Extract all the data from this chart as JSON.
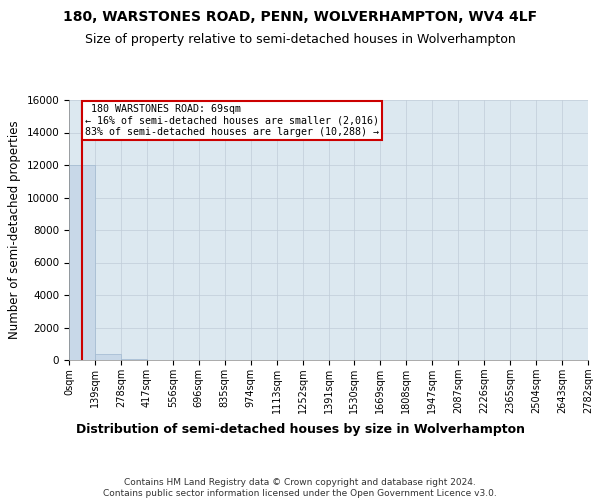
{
  "title": "180, WARSTONES ROAD, PENN, WOLVERHAMPTON, WV4 4LF",
  "subtitle": "Size of property relative to semi-detached houses in Wolverhampton",
  "xlabel": "Distribution of semi-detached houses by size in Wolverhampton",
  "ylabel": "Number of semi-detached properties",
  "property_size": 69,
  "property_label": "180 WARSTONES ROAD: 69sqm",
  "pct_smaller": 16,
  "pct_larger": 83,
  "count_smaller": 2016,
  "count_larger": 10288,
  "bin_edges": [
    0,
    139,
    278,
    417,
    556,
    696,
    835,
    974,
    1113,
    1252,
    1391,
    1530,
    1669,
    1808,
    1947,
    2087,
    2226,
    2365,
    2504,
    2643,
    2782
  ],
  "bar_heights": [
    12000,
    400,
    50,
    20,
    10,
    5,
    3,
    2,
    1,
    1,
    1,
    0,
    0,
    0,
    0,
    0,
    0,
    0,
    0,
    0
  ],
  "bar_color": "#c8d8e8",
  "bar_edge_color": "#a0b8d0",
  "vline_color": "#cc0000",
  "vline_x": 69,
  "annotation_box_color": "#cc0000",
  "ylim": [
    0,
    16000
  ],
  "yticks": [
    0,
    2000,
    4000,
    6000,
    8000,
    10000,
    12000,
    14000,
    16000
  ],
  "grid_color": "#c0ccd8",
  "background_color": "#dce8f0",
  "footer": "Contains HM Land Registry data © Crown copyright and database right 2024.\nContains public sector information licensed under the Open Government Licence v3.0.",
  "title_fontsize": 10,
  "subtitle_fontsize": 9,
  "axis_label_fontsize": 8.5,
  "tick_fontsize": 7.5,
  "footer_fontsize": 6.5
}
